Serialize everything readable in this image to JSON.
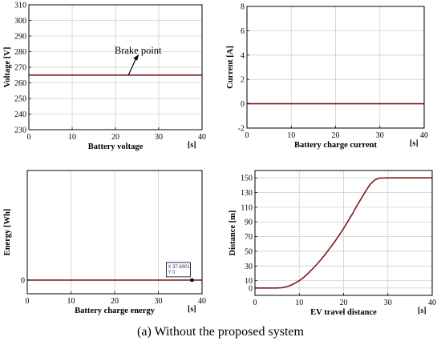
{
  "caption": "(a) Without the proposed system",
  "colors": {
    "series": "#7a1b1b",
    "grid": "#cfcfcf",
    "datatip_text": "#1f3f7a"
  },
  "chart_data": [
    {
      "type": "line",
      "xlabel": "Battery voltage",
      "x_unit": "[s]",
      "ylabel": "Voltage [V]",
      "xlim": [
        0,
        40
      ],
      "ylim": [
        230,
        310
      ],
      "xticks": [
        0,
        10,
        20,
        30,
        40
      ],
      "yticks": [
        230,
        240,
        250,
        260,
        270,
        280,
        290,
        300,
        310
      ],
      "grid": true,
      "series": [
        {
          "x": [
            0,
            40
          ],
          "y": [
            265,
            265
          ]
        }
      ],
      "annotations": [
        {
          "text": "Brake point",
          "x": 23,
          "y": 265
        }
      ]
    },
    {
      "type": "line",
      "xlabel": "Battery charge current",
      "x_unit": "[s]",
      "ylabel": "Current [A]",
      "xlim": [
        0,
        40
      ],
      "ylim": [
        -2,
        8
      ],
      "xticks": [
        0,
        10,
        20,
        30,
        40
      ],
      "yticks": [
        -2,
        0,
        2,
        4,
        6,
        8
      ],
      "grid": true,
      "series": [
        {
          "x": [
            0,
            40
          ],
          "y": [
            0,
            0
          ]
        }
      ]
    },
    {
      "type": "line",
      "xlabel": "Battery charge energy",
      "x_unit": "[s]",
      "ylabel": "Energy [Wh]",
      "xlim": [
        0,
        40
      ],
      "ylim": [
        -1,
        8
      ],
      "xticks": [
        0,
        10,
        20,
        30,
        40
      ],
      "yticks": [
        0
      ],
      "grid": true,
      "series": [
        {
          "x": [
            0,
            40
          ],
          "y": [
            0,
            0
          ]
        }
      ],
      "datatip": {
        "x_text": "X 37.6901",
        "y_text": "Y 0",
        "x": 37.69,
        "y": 0
      }
    },
    {
      "type": "line",
      "xlabel": "EV travel distance",
      "x_unit": "[s]",
      "ylabel": "Distance [m]",
      "xlim": [
        0,
        40
      ],
      "ylim": [
        -10,
        160
      ],
      "xticks": [
        0,
        10,
        20,
        30,
        40
      ],
      "yticks": [
        0,
        10,
        30,
        50,
        70,
        90,
        110,
        130,
        150
      ],
      "grid": true,
      "series": [
        {
          "x": [
            0,
            5,
            6,
            7,
            8,
            9,
            10,
            11,
            12,
            13,
            14,
            15,
            16,
            17,
            18,
            19,
            20,
            21,
            22,
            23,
            24,
            25,
            26,
            27,
            28,
            30,
            40
          ],
          "y": [
            0,
            0,
            0.5,
            1.5,
            3.5,
            6.5,
            10,
            14.5,
            20,
            26,
            32.5,
            39.5,
            47,
            55,
            63,
            72,
            81,
            91,
            101,
            112,
            122,
            132,
            141,
            147,
            149.5,
            150,
            150
          ]
        }
      ]
    }
  ]
}
